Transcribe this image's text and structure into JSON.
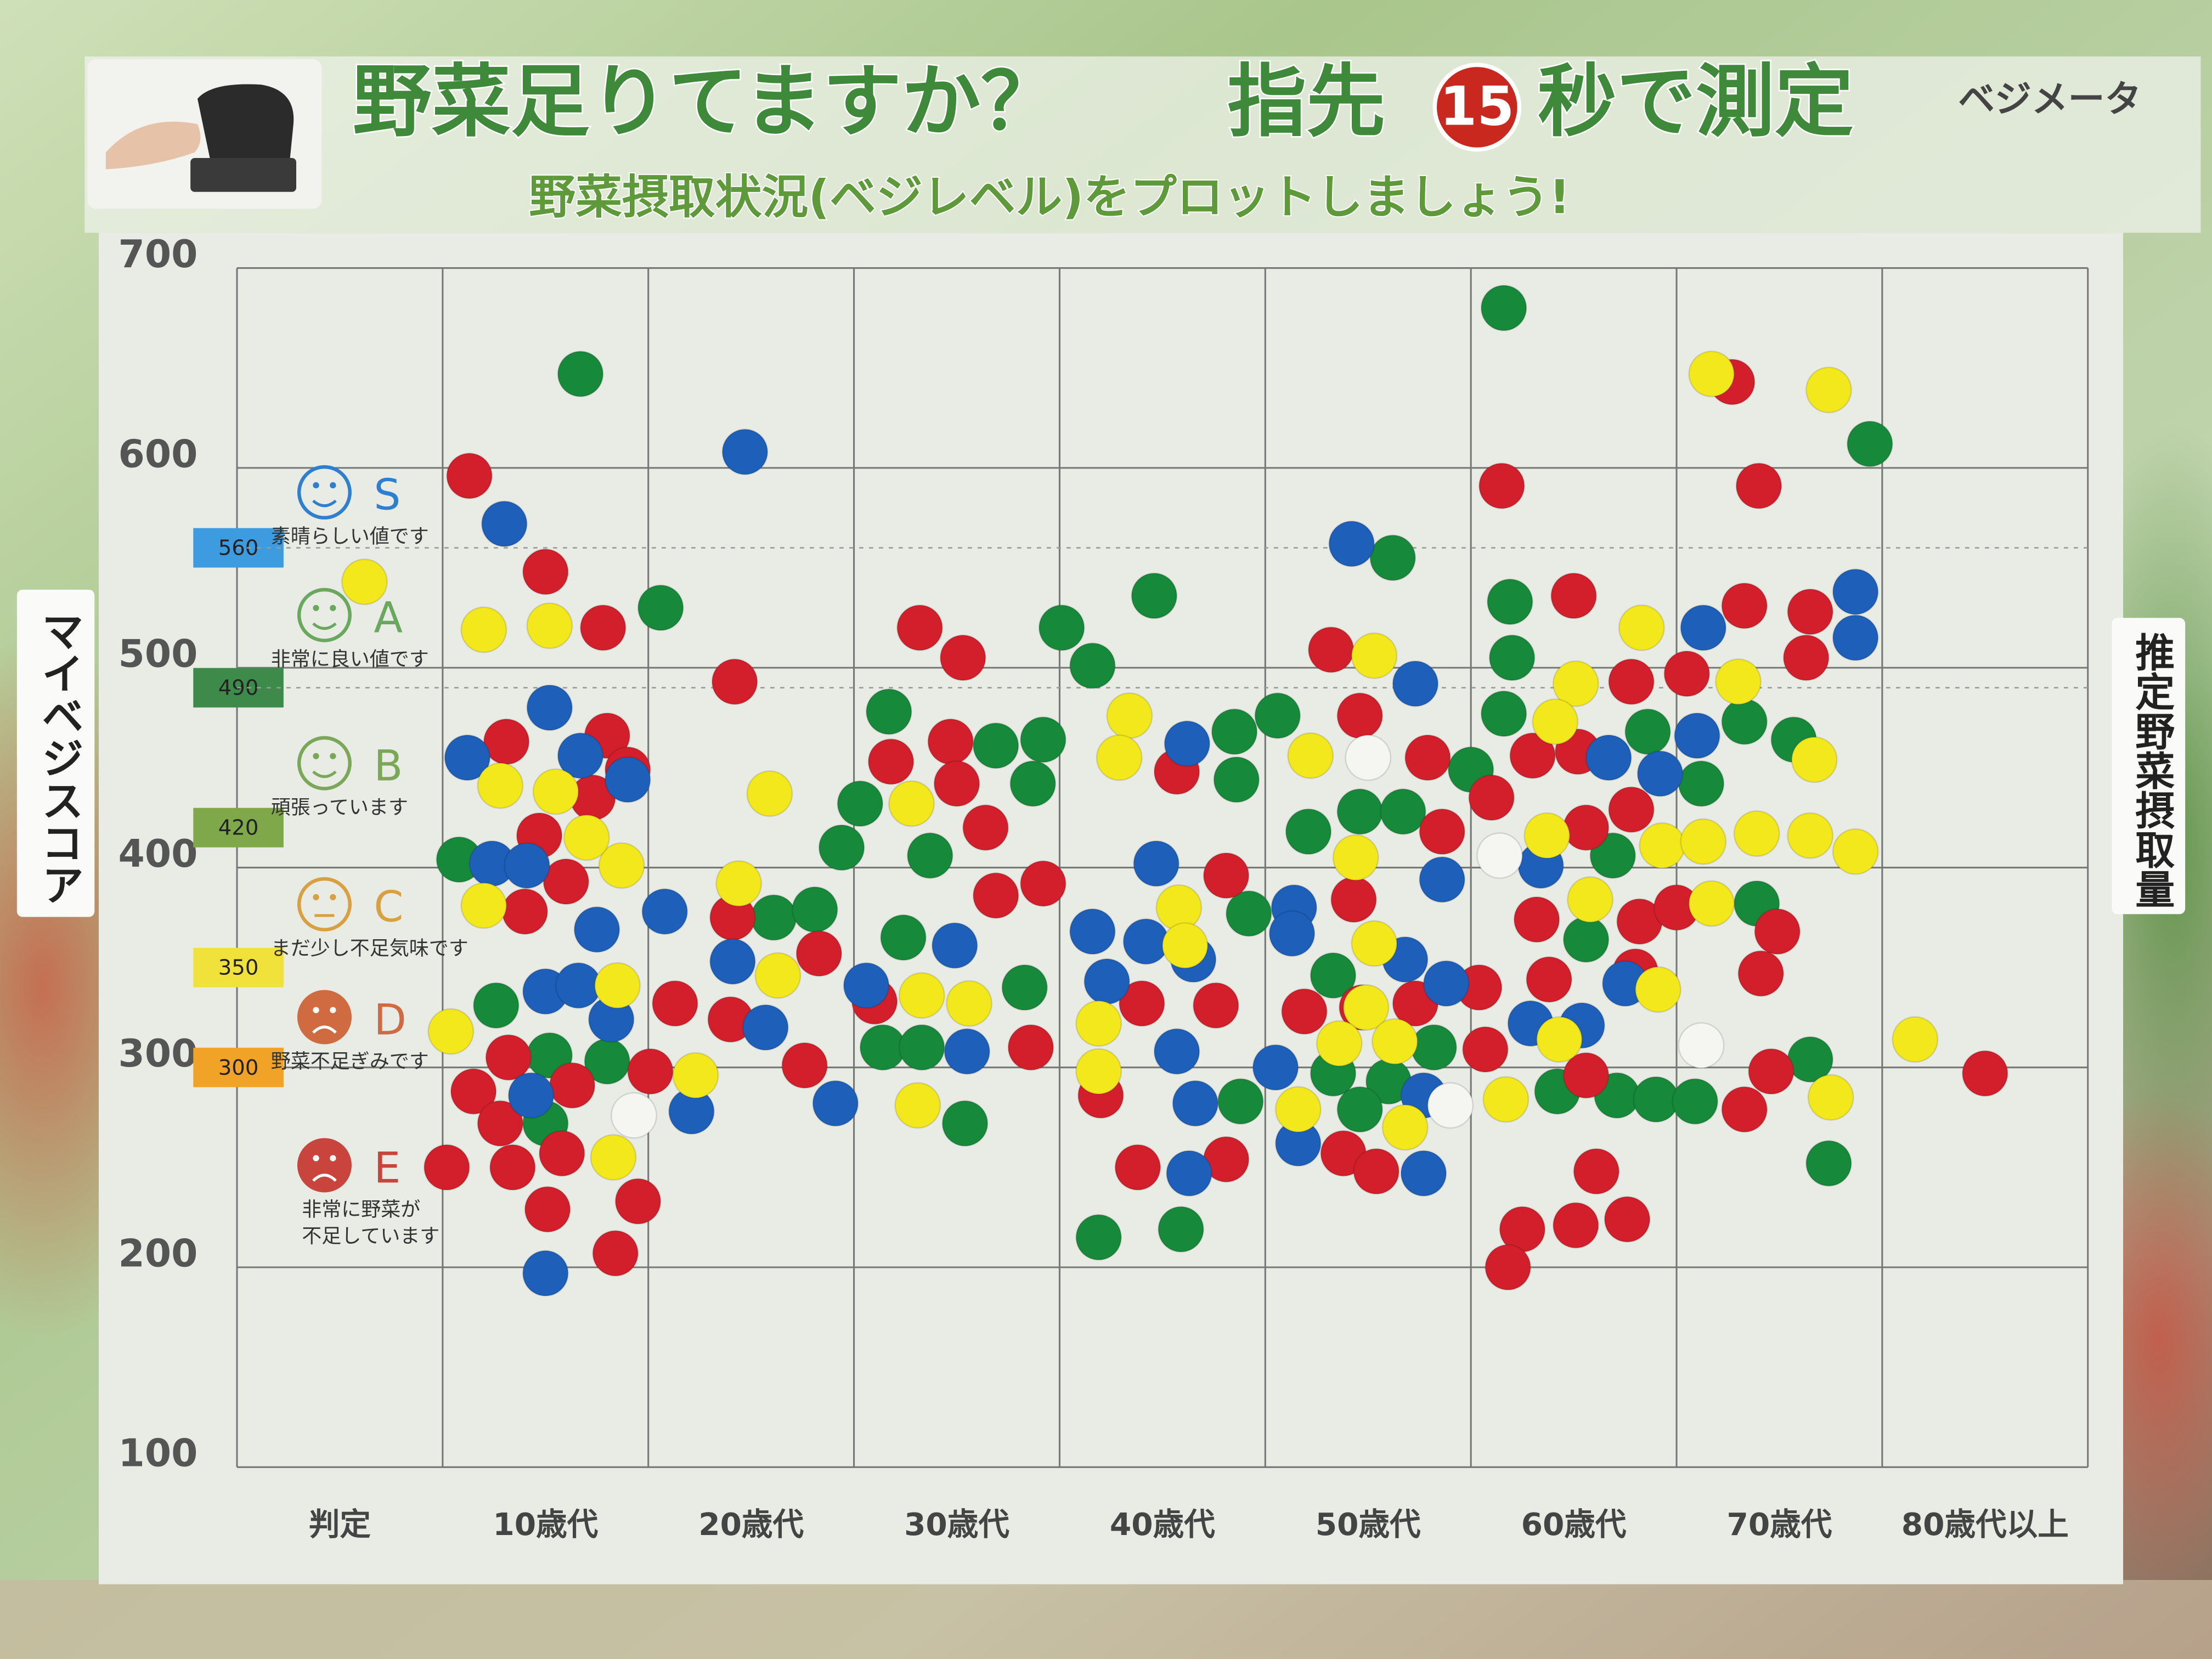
{
  "chart_data": {
    "type": "scatter",
    "title": "野菜足りてますか？",
    "title2": "指先",
    "title_badge": "15",
    "title3": "秒で測定",
    "brand": "ベジメータ",
    "subtitle": "野菜摂取状況(ベジレベル)をプロットしましょう!",
    "y_label": "マイベジスコア",
    "y2_label": "推定野菜摂取量",
    "xlim": [
      0,
      9
    ],
    "xticks": [
      {
        "value": 0.5,
        "label": "判定"
      },
      {
        "value": 1.5,
        "label": "10歳代"
      },
      {
        "value": 2.5,
        "label": "20歳代"
      },
      {
        "value": 3.5,
        "label": "30歳代"
      },
      {
        "value": 4.5,
        "label": "40歳代"
      },
      {
        "value": 5.5,
        "label": "50歳代"
      },
      {
        "value": 6.5,
        "label": "60歳代"
      },
      {
        "value": 7.5,
        "label": "70歳代"
      },
      {
        "value": 8.5,
        "label": "80歳代以上"
      }
    ],
    "ylim": [
      100,
      700
    ],
    "yticks": [
      100,
      200,
      300,
      400,
      500,
      600,
      700
    ],
    "grid": true,
    "thresholds": [
      {
        "value": 560,
        "color": "#3d9be0"
      },
      {
        "value": 490,
        "color": "#3e8a4a"
      },
      {
        "value": 420,
        "color": "#7fa84a"
      },
      {
        "value": 350,
        "color": "#f0e23a"
      },
      {
        "value": 300,
        "color": "#f0a326"
      }
    ],
    "grades": [
      {
        "letter": "S",
        "lines": [
          "素晴らしい値です"
        ],
        "color": "#2f7fd0"
      },
      {
        "letter": "A",
        "lines": [
          "非常に良い値です"
        ],
        "color": "#6aa860"
      },
      {
        "letter": "B",
        "lines": [
          "頑張っています"
        ],
        "color": "#7aa858"
      },
      {
        "letter": "C",
        "lines": [
          "まだ少し不足気味です"
        ],
        "color": "#d8a040"
      },
      {
        "letter": "D",
        "lines": [
          "野菜不足ぎみです"
        ],
        "color": "#d06a40"
      },
      {
        "letter": "E",
        "lines": [
          "非常に野菜が",
          "不足しています"
        ],
        "color": "#c8443c"
      }
    ],
    "series": [
      {
        "color": "#17893a",
        "x": [
          1.67,
          6.16,
          7.94,
          5.62,
          4.46,
          2.06,
          4.01,
          4.16,
          6.19,
          6.2,
          3.17,
          3.69,
          3.92,
          4.85,
          5.06,
          7.33,
          7.57,
          6.16,
          6.86,
          7.12,
          3.87,
          4.86,
          6.0,
          3.03,
          2.94,
          3.37,
          1.08,
          5.46,
          5.67,
          5.21,
          6.69,
          2.61,
          2.81,
          3.24,
          4.92,
          6.56,
          7.39,
          3.83,
          5.33,
          1.26,
          3.14,
          3.33,
          1.52,
          1.8,
          5.33,
          5.6,
          5.82,
          7.65,
          6.42,
          6.71,
          6.9,
          7.09,
          4.88,
          5.46,
          3.54,
          1.5,
          7.74,
          4.19,
          4.59
        ],
        "values": [
          647,
          680,
          612,
          555,
          536,
          530,
          520,
          501,
          533,
          505,
          478,
          461,
          464,
          468,
          476,
          473,
          464,
          477,
          468,
          442,
          442,
          444,
          449,
          432,
          410,
          406,
          404,
          428,
          428,
          418,
          406,
          375,
          379,
          365,
          377,
          364,
          382,
          340,
          346,
          331,
          310,
          310,
          306,
          303,
          297,
          293,
          310,
          304,
          288,
          286,
          284,
          283,
          283,
          279,
          272,
          272,
          252,
          215,
          219
        ]
      },
      {
        "color": "#d21f2b",
        "x": [
          1.13,
          6.15,
          7.4,
          7.27,
          6.5,
          7.33,
          7.65,
          7.63,
          6.78,
          7.05,
          1.5,
          1.78,
          2.42,
          3.32,
          3.53,
          5.32,
          5.46,
          5.79,
          6.3,
          6.52,
          6.78,
          6.56,
          6.1,
          1.31,
          1.8,
          1.9,
          1.73,
          1.47,
          3.47,
          3.18,
          3.5,
          3.64,
          4.57,
          5.86,
          3.92,
          3.69,
          1.6,
          1.4,
          2.41,
          2.83,
          4.81,
          5.43,
          6.32,
          6.82,
          7.0,
          7.49,
          7.41,
          6.38,
          6.04,
          2.13,
          2.4,
          3.1,
          4.4,
          4.76,
          5.19,
          5.47,
          5.73,
          3.86,
          6.07,
          6.56,
          6.8,
          1.32,
          1.63,
          2.01,
          1.15,
          4.2,
          2.76,
          7.46,
          7.33,
          8.5,
          1.28,
          1.58,
          1.34,
          4.38,
          4.81,
          5.38,
          5.54,
          6.61,
          1.51,
          1.95,
          1.84,
          6.51,
          6.76,
          6.25,
          6.18,
          1.02
        ],
        "values": [
          596,
          591,
          591,
          643,
          536,
          531,
          528,
          505,
          493,
          497,
          548,
          520,
          493,
          520,
          505,
          509,
          476,
          455,
          456,
          458,
          429,
          420,
          435,
          463,
          466,
          449,
          435,
          416,
          463,
          453,
          442,
          420,
          448,
          418,
          392,
          386,
          393,
          378,
          375,
          357,
          396,
          384,
          374,
          373,
          380,
          368,
          347,
          344,
          340,
          332,
          324,
          333,
          332,
          331,
          328,
          330,
          332,
          310,
          309,
          296,
          348,
          305,
          291,
          298,
          288,
          286,
          301,
          298,
          279,
          297,
          272,
          257,
          250,
          250,
          254,
          257,
          248,
          248,
          229,
          233,
          207,
          221,
          224,
          219,
          200,
          250
        ]
      },
      {
        "color": "#1d5fb9",
        "x": [
          2.47,
          1.3,
          5.42,
          7.87,
          7.87,
          7.13,
          5.73,
          1.52,
          1.12,
          1.67,
          1.9,
          4.62,
          6.67,
          6.92,
          7.1,
          1.24,
          1.41,
          4.47,
          5.86,
          6.34,
          1.75,
          2.08,
          2.41,
          3.49,
          4.16,
          4.42,
          4.65,
          5.14,
          5.13,
          5.68,
          5.88,
          1.5,
          1.66,
          1.82,
          2.57,
          3.06,
          4.23,
          4.57,
          5.05,
          6.29,
          6.54,
          6.75,
          3.55,
          1.43,
          2.21,
          2.91,
          4.66,
          5.77,
          5.16,
          5.77,
          4.63,
          1.5
        ],
        "values": [
          608,
          572,
          562,
          538,
          515,
          520,
          492,
          480,
          455,
          456,
          444,
          462,
          455,
          447,
          466,
          402,
          401,
          402,
          394,
          401,
          369,
          378,
          353,
          361,
          368,
          363,
          354,
          380,
          367,
          354,
          342,
          338,
          341,
          324,
          320,
          341,
          343,
          308,
          300,
          322,
          321,
          342,
          308,
          286,
          278,
          282,
          282,
          286,
          262,
          247,
          247,
          197
        ]
      },
      {
        "color": "#f3e81c",
        "x": [
          0.62,
          1.2,
          1.52,
          7.17,
          7.74,
          6.83,
          5.53,
          6.51,
          7.3,
          6.41,
          4.34,
          4.29,
          5.22,
          1.28,
          1.55,
          7.67,
          1.87,
          1.7,
          2.59,
          3.28,
          6.37,
          6.93,
          7.13,
          7.39,
          7.65,
          7.87,
          5.44,
          6.58,
          7.17,
          1.2,
          2.44,
          4.58,
          4.61,
          5.53,
          2.63,
          1.85,
          3.33,
          3.56,
          4.19,
          5.49,
          5.63,
          5.36,
          6.43,
          6.91,
          8.16,
          1.04,
          2.23,
          4.19,
          3.31,
          6.17,
          5.68,
          7.75,
          1.83,
          5.16
        ],
        "values": [
          543,
          519,
          521,
          647,
          639,
          520,
          506,
          492,
          493,
          473,
          476,
          455,
          456,
          441,
          438,
          454,
          401,
          415,
          437,
          432,
          416,
          411,
          413,
          417,
          416,
          408,
          405,
          384,
          382,
          381,
          392,
          380,
          361,
          362,
          346,
          341,
          336,
          332,
          322,
          330,
          313,
          312,
          314,
          339,
          314,
          318,
          296,
          298,
          281,
          284,
          270,
          285,
          255,
          279
        ]
      },
      {
        "color": "#f5f5f2",
        "x": [
          5.5,
          6.14,
          7.12,
          1.93,
          5.9
        ],
        "values": [
          455,
          406,
          311,
          276,
          281
        ]
      }
    ]
  }
}
